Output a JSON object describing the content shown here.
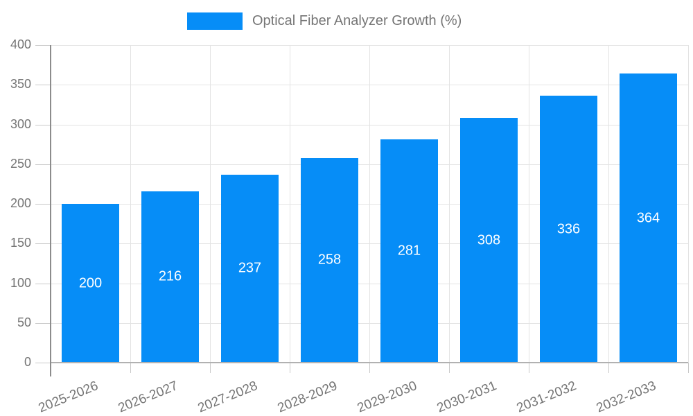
{
  "legend": {
    "label": "Optical Fiber Analyzer Growth (%)"
  },
  "chart_data": {
    "type": "bar",
    "title": "Optical Fiber Analyzer Growth (%)",
    "categories": [
      "2025-2026",
      "2026-2027",
      "2027-2028",
      "2028-2029",
      "2029-2030",
      "2030-2031",
      "2031-2032",
      "2032-2033"
    ],
    "values": [
      200,
      216,
      237,
      258,
      281,
      308,
      336,
      364
    ],
    "xlabel": "",
    "ylabel": "",
    "ylim": [
      0,
      400
    ],
    "ytick_step": 50,
    "yticks": [
      0,
      50,
      100,
      150,
      200,
      250,
      300,
      350,
      400
    ],
    "grid": true,
    "legend_position": "top-center",
    "value_labels_inside_bars": true,
    "colors": {
      "bar": "#068df7",
      "value_label": "#ffffff",
      "axis_text": "#757575",
      "gridline": "#e3e3e3",
      "tick": "#c9c9c9",
      "axis_line": "#8c8c8c",
      "baseline": "#b1b1b1",
      "background": "#ffffff"
    }
  }
}
